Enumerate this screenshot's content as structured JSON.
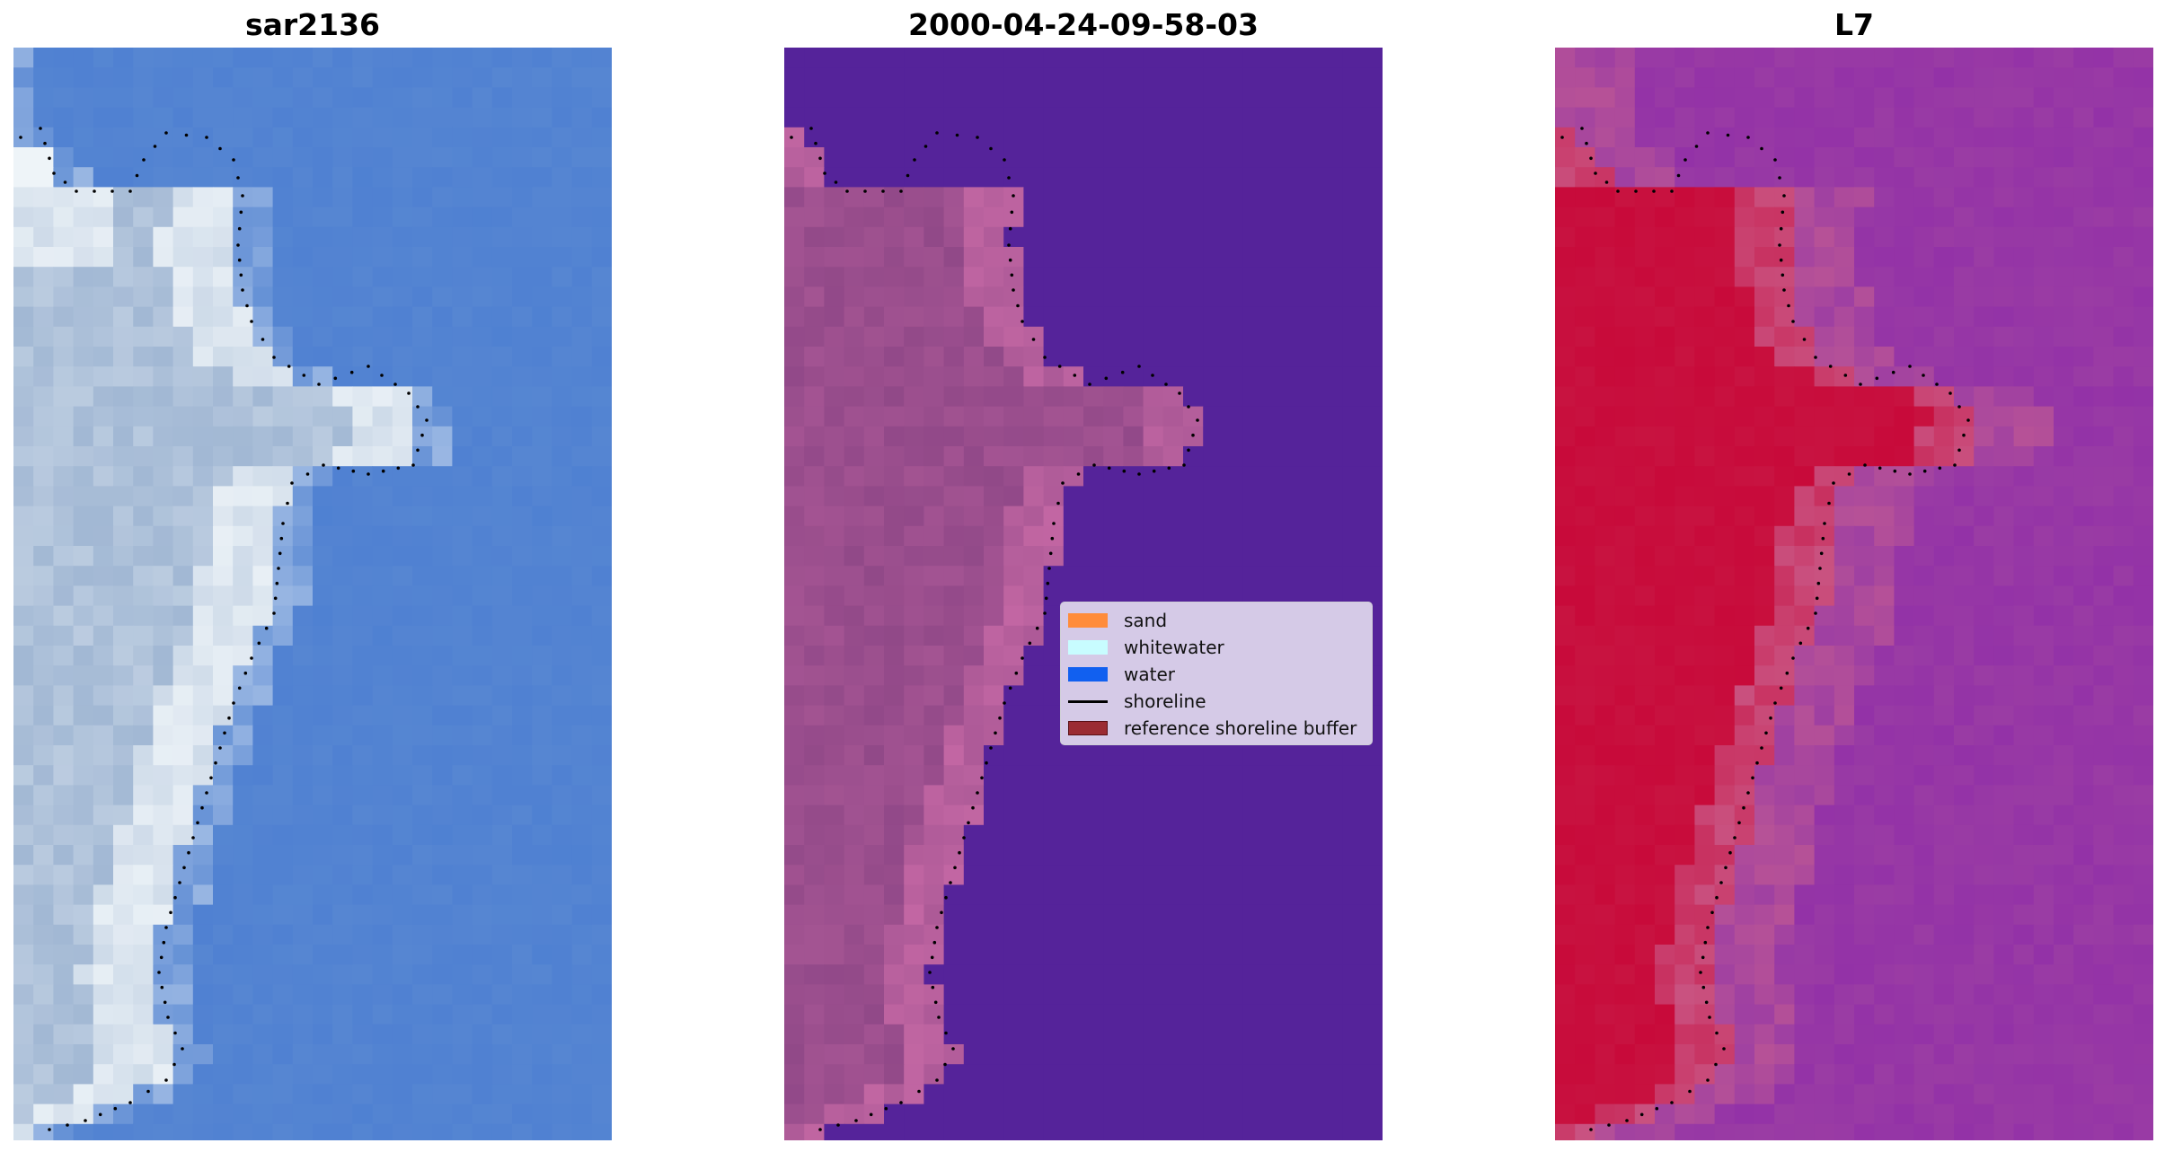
{
  "panels": [
    {
      "title": "sar2136",
      "kind": "rgb"
    },
    {
      "title": "2000-04-24-09-58-03",
      "kind": "classified"
    },
    {
      "title": "L7",
      "kind": "mndwi"
    }
  ],
  "legend": {
    "items": [
      {
        "label": "sand",
        "color": "#ff8c3a",
        "type": "patch"
      },
      {
        "label": "whitewater",
        "color": "#c8fcff",
        "type": "patch"
      },
      {
        "label": "water",
        "color": "#1160f0",
        "type": "patch"
      },
      {
        "label": "shoreline",
        "color": "#000000",
        "type": "line"
      },
      {
        "label": "reference shoreline buffer",
        "color": "#9b2c33",
        "type": "patch"
      }
    ]
  },
  "colors": {
    "rgb_water": "#5686d2",
    "rgb_land": "#a2b8d4",
    "rgb_bright": "#eef4f8",
    "class_water": "#55239a",
    "class_land": "#8b4585",
    "class_edge": "#c86aa6",
    "mndwi_water": "#9a3ca4",
    "mndwi_land": "#c80a3a",
    "mndwi_edge": "#c9608e",
    "shoreline_dots": "#000000"
  }
}
